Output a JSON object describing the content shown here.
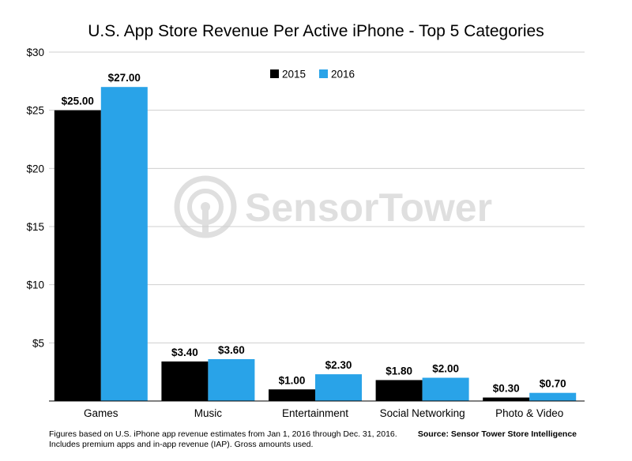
{
  "chart_data": {
    "type": "bar",
    "title": "U.S. App Store Revenue Per Active iPhone - Top 5 Categories",
    "categories": [
      "Games",
      "Music",
      "Entertainment",
      "Social Networking",
      "Photo & Video"
    ],
    "series": [
      {
        "name": "2015",
        "color": "#000000",
        "values": [
          25.0,
          3.4,
          1.0,
          1.8,
          0.3
        ],
        "labels": [
          "$25.00",
          "$3.40",
          "$1.00",
          "$1.80",
          "$0.30"
        ]
      },
      {
        "name": "2016",
        "color": "#29a3e8",
        "values": [
          27.0,
          3.6,
          2.3,
          2.0,
          0.7
        ],
        "labels": [
          "$27.00",
          "$3.60",
          "$2.30",
          "$2.00",
          "$0.70"
        ]
      }
    ],
    "yticks": [
      5,
      10,
      15,
      20,
      25,
      30
    ],
    "ytick_labels": [
      "$5",
      "$10",
      "$15",
      "$20",
      "$25",
      "$30"
    ],
    "ylim": [
      0,
      30
    ],
    "grid": true,
    "legend_position": "top-center",
    "xlabel": "",
    "ylabel": ""
  },
  "watermark": {
    "text": "SensorTower",
    "icon": "sensor-tower-logo-icon"
  },
  "footnote": {
    "line1": "Figures based on U.S. iPhone app revenue estimates from Jan 1, 2016 through Dec. 31, 2016.",
    "line2": "Includes premium apps and in-app revenue (IAP). Gross amounts used."
  },
  "source": "Source: Sensor Tower Store Intelligence"
}
